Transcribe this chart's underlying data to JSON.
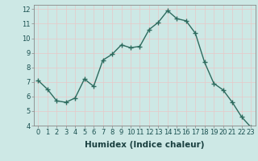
{
  "x": [
    0,
    1,
    2,
    3,
    4,
    5,
    6,
    7,
    8,
    9,
    10,
    11,
    12,
    13,
    14,
    15,
    16,
    17,
    18,
    19,
    20,
    21,
    22,
    23
  ],
  "y": [
    7.1,
    6.5,
    5.7,
    5.6,
    5.9,
    7.2,
    6.7,
    8.5,
    8.9,
    9.55,
    9.35,
    9.45,
    10.6,
    11.1,
    11.9,
    11.35,
    11.2,
    10.35,
    8.35,
    6.9,
    6.45,
    5.6,
    4.6,
    3.9
  ],
  "line_color": "#2d6b5e",
  "marker": "+",
  "marker_size": 4,
  "marker_linewidth": 1.0,
  "bg_color": "#cde8e5",
  "grid_color": "#c0d8d5",
  "grid_color2": "#e8c8c8",
  "xlabel": "Humidex (Indice chaleur)",
  "xlim": [
    -0.5,
    23.5
  ],
  "ylim": [
    4,
    12.3
  ],
  "yticks": [
    4,
    5,
    6,
    7,
    8,
    9,
    10,
    11,
    12
  ],
  "xticks": [
    0,
    1,
    2,
    3,
    4,
    5,
    6,
    7,
    8,
    9,
    10,
    11,
    12,
    13,
    14,
    15,
    16,
    17,
    18,
    19,
    20,
    21,
    22,
    23
  ],
  "tick_fontsize": 6.0,
  "xlabel_fontsize": 7.5,
  "linewidth": 1.0
}
